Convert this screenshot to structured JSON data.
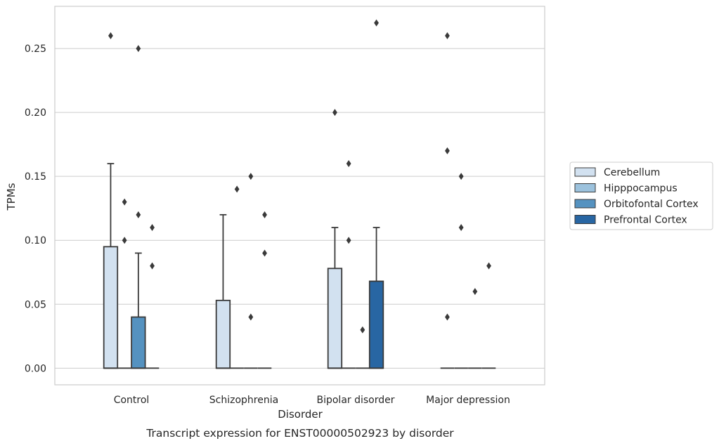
{
  "chart_data": {
    "type": "box",
    "caption": "Transcript expression for ENST00000502923 by disorder",
    "xlabel": "Disorder",
    "ylabel": "TPMs",
    "ylim": [
      -0.013,
      0.283
    ],
    "yticks": [
      0.0,
      0.05,
      0.1,
      0.15,
      0.2,
      0.25
    ],
    "ytick_labels": [
      "0.00",
      "0.05",
      "0.10",
      "0.15",
      "0.20",
      "0.25"
    ],
    "grid": "horizontal",
    "legend_position": "right",
    "categories": [
      "Control",
      "Schizophrenia",
      "Bipolar disorder",
      "Major depression"
    ],
    "series": [
      {
        "name": "Cerebellum",
        "color": "#d2e1f0",
        "boxes": [
          {
            "q1": 0.0,
            "median": 0.0,
            "q3": 0.095,
            "whisker_low": 0.0,
            "whisker_high": 0.16,
            "outliers": [
              0.26
            ]
          },
          {
            "q1": 0.0,
            "median": 0.0,
            "q3": 0.053,
            "whisker_low": 0.0,
            "whisker_high": 0.12,
            "outliers": []
          },
          {
            "q1": 0.0,
            "median": 0.0,
            "q3": 0.078,
            "whisker_low": 0.0,
            "whisker_high": 0.11,
            "outliers": [
              0.2
            ]
          },
          {
            "q1": 0.0,
            "median": 0.0,
            "q3": 0.0,
            "whisker_low": 0.0,
            "whisker_high": 0.0,
            "outliers": [
              0.26,
              0.17,
              0.04
            ]
          }
        ]
      },
      {
        "name": "Hipppocampus",
        "color": "#9cc2dd",
        "boxes": [
          {
            "q1": 0.0,
            "median": 0.0,
            "q3": 0.0,
            "whisker_low": 0.0,
            "whisker_high": 0.0,
            "outliers": [
              0.13,
              0.1
            ]
          },
          {
            "q1": 0.0,
            "median": 0.0,
            "q3": 0.0,
            "whisker_low": 0.0,
            "whisker_high": 0.0,
            "outliers": [
              0.14
            ]
          },
          {
            "q1": 0.0,
            "median": 0.0,
            "q3": 0.0,
            "whisker_low": 0.0,
            "whisker_high": 0.0,
            "outliers": [
              0.16,
              0.1
            ]
          },
          {
            "q1": 0.0,
            "median": 0.0,
            "q3": 0.0,
            "whisker_low": 0.0,
            "whisker_high": 0.0,
            "outliers": [
              0.15,
              0.11
            ]
          }
        ]
      },
      {
        "name": "Orbitofontal Cortex",
        "color": "#5592c0",
        "boxes": [
          {
            "q1": 0.0,
            "median": 0.0,
            "q3": 0.04,
            "whisker_low": 0.0,
            "whisker_high": 0.09,
            "outliers": [
              0.25,
              0.12
            ]
          },
          {
            "q1": 0.0,
            "median": 0.0,
            "q3": 0.0,
            "whisker_low": 0.0,
            "whisker_high": 0.0,
            "outliers": [
              0.15,
              0.04
            ]
          },
          {
            "q1": 0.0,
            "median": 0.0,
            "q3": 0.0,
            "whisker_low": 0.0,
            "whisker_high": 0.0,
            "outliers": [
              0.03
            ]
          },
          {
            "q1": 0.0,
            "median": 0.0,
            "q3": 0.0,
            "whisker_low": 0.0,
            "whisker_high": 0.0,
            "outliers": [
              0.06
            ]
          }
        ]
      },
      {
        "name": "Prefrontal Cortex",
        "color": "#2866a3",
        "boxes": [
          {
            "q1": 0.0,
            "median": 0.0,
            "q3": 0.0,
            "whisker_low": 0.0,
            "whisker_high": 0.0,
            "outliers": [
              0.11,
              0.08
            ]
          },
          {
            "q1": 0.0,
            "median": 0.0,
            "q3": 0.0,
            "whisker_low": 0.0,
            "whisker_high": 0.0,
            "outliers": [
              0.12,
              0.09
            ]
          },
          {
            "q1": 0.0,
            "median": 0.0,
            "q3": 0.068,
            "whisker_low": 0.0,
            "whisker_high": 0.11,
            "outliers": [
              0.27
            ]
          },
          {
            "q1": 0.0,
            "median": 0.0,
            "q3": 0.0,
            "whisker_low": 0.0,
            "whisker_high": 0.0,
            "outliers": [
              0.08
            ]
          }
        ]
      }
    ],
    "colors": {
      "edge": "#3a3a3a",
      "grid": "#cccccc",
      "frame": "#cccccc",
      "outlier": "#3a3a3a"
    }
  }
}
